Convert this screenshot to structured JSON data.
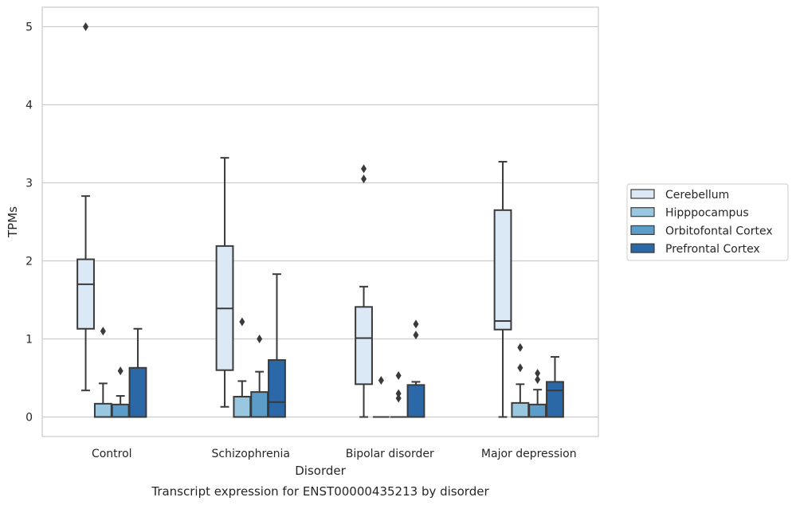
{
  "chart_data": {
    "type": "box",
    "caption": "Transcript expression for ENST00000435213 by disorder",
    "xlabel": "Disorder",
    "ylabel": "TPMs",
    "ylim": [
      -0.25,
      5.25
    ],
    "yticks": [
      0,
      1,
      2,
      3,
      4,
      5
    ],
    "grid": true,
    "legend_position": "right",
    "categories": [
      "Control",
      "Schizophrenia",
      "Bipolar disorder",
      "Major depression"
    ],
    "series": [
      {
        "name": "Cerebellum",
        "color": "#dbe9f6",
        "boxes": [
          {
            "whislo": 0.34,
            "q1": 1.13,
            "med": 1.7,
            "q3": 2.02,
            "whishi": 2.83,
            "fliers": [
              5.0
            ]
          },
          {
            "whislo": 0.13,
            "q1": 0.6,
            "med": 1.39,
            "q3": 2.19,
            "whishi": 3.32,
            "fliers": []
          },
          {
            "whislo": 0.0,
            "q1": 0.42,
            "med": 1.01,
            "q3": 1.41,
            "whishi": 1.67,
            "fliers": [
              3.05,
              3.18
            ]
          },
          {
            "whislo": 0.0,
            "q1": 1.12,
            "med": 1.23,
            "q3": 2.65,
            "whishi": 3.27,
            "fliers": []
          }
        ]
      },
      {
        "name": "Hipppocampus",
        "color": "#9ac7e0",
        "boxes": [
          {
            "whislo": 0.0,
            "q1": 0.0,
            "med": 0.0,
            "q3": 0.17,
            "whishi": 0.43,
            "fliers": [
              1.1
            ]
          },
          {
            "whislo": 0.0,
            "q1": 0.0,
            "med": 0.0,
            "q3": 0.26,
            "whishi": 0.46,
            "fliers": [
              1.22
            ]
          },
          {
            "whislo": 0.0,
            "q1": 0.0,
            "med": 0.0,
            "q3": 0.0,
            "whishi": 0.0,
            "fliers": [
              0.47
            ]
          },
          {
            "whislo": 0.0,
            "q1": 0.0,
            "med": 0.0,
            "q3": 0.18,
            "whishi": 0.42,
            "fliers": [
              0.63,
              0.89
            ]
          }
        ]
      },
      {
        "name": "Orbitofontal Cortex",
        "color": "#5b9cc8",
        "boxes": [
          {
            "whislo": 0.0,
            "q1": 0.0,
            "med": 0.0,
            "q3": 0.16,
            "whishi": 0.27,
            "fliers": [
              0.59
            ]
          },
          {
            "whislo": 0.0,
            "q1": 0.0,
            "med": 0.0,
            "q3": 0.32,
            "whishi": 0.58,
            "fliers": [
              1.0
            ]
          },
          {
            "whislo": 0.0,
            "q1": 0.0,
            "med": 0.0,
            "q3": 0.0,
            "whishi": 0.0,
            "fliers": [
              0.24,
              0.3,
              0.53
            ]
          },
          {
            "whislo": 0.0,
            "q1": 0.0,
            "med": 0.0,
            "q3": 0.16,
            "whishi": 0.35,
            "fliers": [
              0.48,
              0.56
            ]
          }
        ]
      },
      {
        "name": "Prefrontal Cortex",
        "color": "#2a68a8",
        "boxes": [
          {
            "whislo": 0.0,
            "q1": 0.0,
            "med": 0.0,
            "q3": 0.63,
            "whishi": 1.13,
            "fliers": []
          },
          {
            "whislo": 0.0,
            "q1": 0.0,
            "med": 0.19,
            "q3": 0.73,
            "whishi": 1.83,
            "fliers": []
          },
          {
            "whislo": 0.0,
            "q1": 0.0,
            "med": 0.0,
            "q3": 0.41,
            "whishi": 0.45,
            "fliers": [
              1.05,
              1.19
            ]
          },
          {
            "whislo": 0.0,
            "q1": 0.0,
            "med": 0.34,
            "q3": 0.45,
            "whishi": 0.77,
            "fliers": []
          }
        ]
      }
    ]
  }
}
